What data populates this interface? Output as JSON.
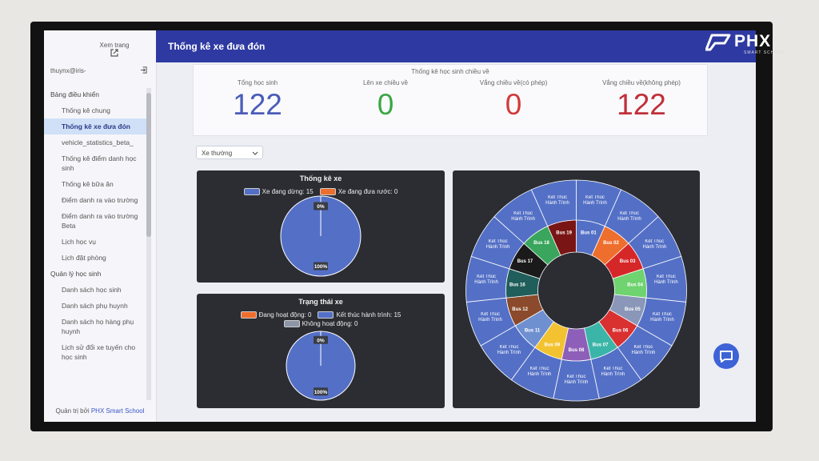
{
  "logo": {
    "brand": "PHX",
    "tagline": "SMART SCHOOL"
  },
  "sidebar": {
    "view_page": "Xem trang",
    "user": "thuynx@iris-",
    "nav": [
      {
        "text": "Bảng điều khiển",
        "level": "section"
      },
      {
        "text": "Thống kê chung",
        "level": "item"
      },
      {
        "text": "Thống kê xe đưa đón",
        "level": "item",
        "active": true
      },
      {
        "text": "vehicle_statistics_beta_",
        "level": "item"
      },
      {
        "text": "Thống kê điểm danh học sinh",
        "level": "item"
      },
      {
        "text": "Thống kê bữa ăn",
        "level": "item"
      },
      {
        "text": "Điểm danh ra vào trường",
        "level": "item"
      },
      {
        "text": "Điểm danh ra vào trường Beta",
        "level": "item"
      },
      {
        "text": "Lịch học vụ",
        "level": "item"
      },
      {
        "text": "Lịch đặt phòng",
        "level": "item"
      },
      {
        "text": "Quản lý học sinh",
        "level": "section"
      },
      {
        "text": "Danh sách học sinh",
        "level": "item"
      },
      {
        "text": "Danh sách phụ huynh",
        "level": "item"
      },
      {
        "text": "Danh sách họ hàng phụ huynh",
        "level": "item"
      },
      {
        "text": "Lịch sử đổi xe tuyến cho học sinh",
        "level": "item"
      }
    ],
    "footer": {
      "prefix": "Quản trị bởi",
      "brand": "PHX Smart School"
    }
  },
  "header": {
    "title": "Thống kê xe đưa đón"
  },
  "summary": {
    "title": "Thống kê học sinh chiều về",
    "stats": [
      {
        "label": "Tổng học sinh",
        "value": 122,
        "color": "#4a5cb8"
      },
      {
        "label": "Lên xe chiều về",
        "value": 0,
        "color": "#3aa645"
      },
      {
        "label": "Vắng chiều về(có phép)",
        "value": 0,
        "color": "#d23a3a"
      },
      {
        "label": "Vắng chiều về(không phép)",
        "value": 122,
        "color": "#c0303a"
      }
    ]
  },
  "filter": {
    "selected": "Xe thường"
  },
  "pies": [
    {
      "title": "Thống kê xe",
      "slices": [
        {
          "name": "Xe đang dừng: 15",
          "value": 100,
          "value_label": "100%",
          "color": "#5470c6"
        },
        {
          "name": "Xe đang đưa rước: 0",
          "value": 0,
          "value_label": "0%",
          "color": "#ee6e2d"
        }
      ]
    },
    {
      "title": "Trạng thái xe",
      "slices": [
        {
          "name": "Đang hoạt động: 0",
          "value": 0,
          "value_label": "0%",
          "color": "#ee6e2d"
        },
        {
          "name": "Kết thúc hành trình: 15",
          "value": 100,
          "value_label": "100%",
          "color": "#5470c6"
        },
        {
          "name": "Không hoạt động: 0",
          "value": 0,
          "color": "#8d96a8"
        }
      ]
    }
  ],
  "buses": [
    {
      "name": "Bus 01",
      "color": "#5470c6",
      "status": "Kết Thúc Hành Trình"
    },
    {
      "name": "Bus 02",
      "color": "#ee6e2d",
      "status": "Kết Thúc Hành Trình"
    },
    {
      "name": "Bus 03",
      "color": "#d62728",
      "status": "Kết Thúc Hành Trình"
    },
    {
      "name": "Bus 04",
      "color": "#6fd36f",
      "status": "Kết Thúc Hành Trình"
    },
    {
      "name": "Bus 05",
      "color": "#8a97b8",
      "status": "Kết Thúc Hành Trình"
    },
    {
      "name": "Bus 06",
      "color": "#d93030",
      "status": "Kết Thúc Hành Trình"
    },
    {
      "name": "Bus 07",
      "color": "#3bb5a8",
      "status": "Kết Thúc Hành Trình"
    },
    {
      "name": "Bus 08",
      "color": "#8e5fb8",
      "status": "Kết Thúc Hành Trình"
    },
    {
      "name": "Bus 09",
      "color": "#f2c231",
      "status": "Kết Thúc Hành Trình"
    },
    {
      "name": "Bus 11",
      "color": "#6e8fd0",
      "status": "Kết Thúc Hành Trình"
    },
    {
      "name": "Bus 12",
      "color": "#8b4a2b",
      "status": "Kết Thúc Hành Trình"
    },
    {
      "name": "Bus 16",
      "color": "#1f5e5a",
      "status": "Kết Thúc Hành Trình"
    },
    {
      "name": "Bus 17",
      "color": "#1a1a1a",
      "status": "Kết Thúc Hành Trình"
    },
    {
      "name": "Bus 18",
      "color": "#3aa55c",
      "status": "Kết Thúc Hành Trình"
    },
    {
      "name": "Bus 19",
      "color": "#7a1515",
      "status": "Kết Thúc Hành Trình"
    }
  ],
  "outer_color": "#5470c6"
}
